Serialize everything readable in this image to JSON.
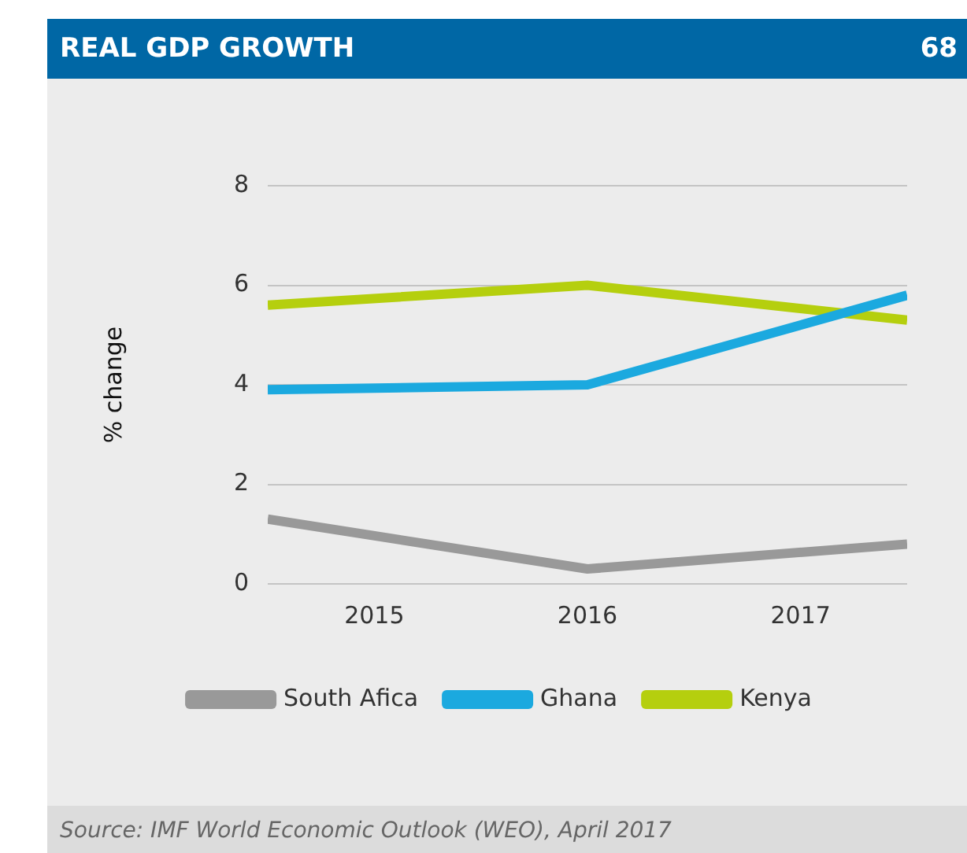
{
  "chart_data": {
    "type": "line",
    "title": "REAL GDP GROWTH",
    "annotations": [
      "68",
      "Source: IMF World Economic Outlook (WEO), April 2017"
    ],
    "ylabel": "% change",
    "x": [
      2014.5,
      2016,
      2017.5
    ],
    "xlim": [
      2014.5,
      2017.5
    ],
    "xticks": [
      2015,
      2016,
      2017
    ],
    "ylim": [
      0,
      8
    ],
    "yticks": [
      0,
      2,
      4,
      6,
      8
    ],
    "grid": "y",
    "legend": "bottom",
    "marker": "none",
    "line_style": "solid",
    "series": [
      {
        "name": "South Afica",
        "color": "#999999",
        "values": [
          1.3,
          0.3,
          0.8
        ]
      },
      {
        "name": "Ghana",
        "color": "#1ba9df",
        "values": [
          3.9,
          4.0,
          5.8
        ]
      },
      {
        "name": "Kenya",
        "color": "#b5cf0e",
        "values": [
          5.6,
          6.0,
          5.3
        ]
      }
    ]
  }
}
